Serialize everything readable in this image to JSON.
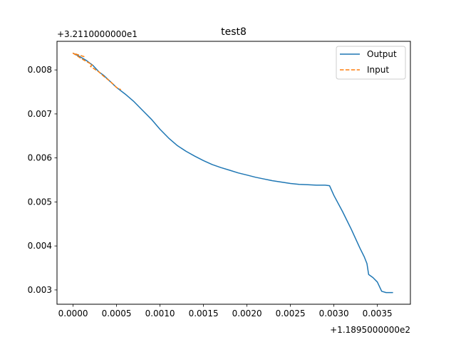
{
  "chart_data": {
    "type": "line",
    "title": "test8",
    "xlabel": "",
    "ylabel": "",
    "x_offset_label": "+1.1895000000e2",
    "y_offset_label": "+3.2110000000e1",
    "xlim": [
      -0.000185,
      0.00388
    ],
    "ylim": [
      0.002675,
      0.00865
    ],
    "x_ticks": [
      0.0,
      0.0005,
      0.001,
      0.0015,
      0.002,
      0.0025,
      0.003,
      0.0035
    ],
    "x_tick_labels": [
      "0.0000",
      "0.0005",
      "0.0010",
      "0.0015",
      "0.0020",
      "0.0025",
      "0.0030",
      "0.0035"
    ],
    "y_ticks": [
      0.003,
      0.004,
      0.005,
      0.006,
      0.007,
      0.008
    ],
    "y_tick_labels": [
      "0.003",
      "0.004",
      "0.005",
      "0.006",
      "0.007",
      "0.008"
    ],
    "grid": false,
    "legend_position": "top-right",
    "series": [
      {
        "name": "Output",
        "color": "#1f77b4",
        "style": "solid",
        "x": [
          0.0,
          8e-05,
          0.00015,
          0.00023,
          0.0003,
          0.00035,
          0.00042,
          0.0005,
          0.0006,
          0.0007,
          0.0008,
          0.0009,
          0.001,
          0.0011,
          0.0012,
          0.0013,
          0.0014,
          0.0015,
          0.0016,
          0.0017,
          0.0018,
          0.0019,
          0.002,
          0.0021,
          0.0022,
          0.0023,
          0.0024,
          0.0025,
          0.0026,
          0.0027,
          0.0028,
          0.0029,
          0.00295,
          0.003,
          0.0031,
          0.0032,
          0.0033,
          0.00335,
          0.00338,
          0.0034,
          0.00345,
          0.0035,
          0.00355,
          0.0036,
          0.00368
        ],
        "y": [
          0.00838,
          0.0083,
          0.00822,
          0.0081,
          0.00795,
          0.00788,
          0.00775,
          0.0076,
          0.00745,
          0.00728,
          0.00708,
          0.00688,
          0.00665,
          0.00645,
          0.00628,
          0.00615,
          0.00604,
          0.00594,
          0.00585,
          0.00578,
          0.00572,
          0.00566,
          0.00561,
          0.00556,
          0.00552,
          0.00548,
          0.00545,
          0.00542,
          0.0054,
          0.00539,
          0.00538,
          0.00538,
          0.00537,
          0.00515,
          0.00478,
          0.00438,
          0.00395,
          0.00375,
          0.0036,
          0.00335,
          0.00328,
          0.00318,
          0.00297,
          0.00294,
          0.00294
        ]
      },
      {
        "name": "Input",
        "color": "#ff7f0e",
        "style": "dashed",
        "x": [
          0.00013,
          0.0,
          0.0001,
          0.00022,
          0.0002,
          0.0003,
          0.00035,
          0.00042,
          0.00046,
          0.0005,
          0.00055
        ],
        "y": [
          0.0083,
          0.00838,
          0.00825,
          0.00812,
          0.00808,
          0.00795,
          0.00786,
          0.00775,
          0.00768,
          0.0076,
          0.00755
        ]
      }
    ]
  }
}
